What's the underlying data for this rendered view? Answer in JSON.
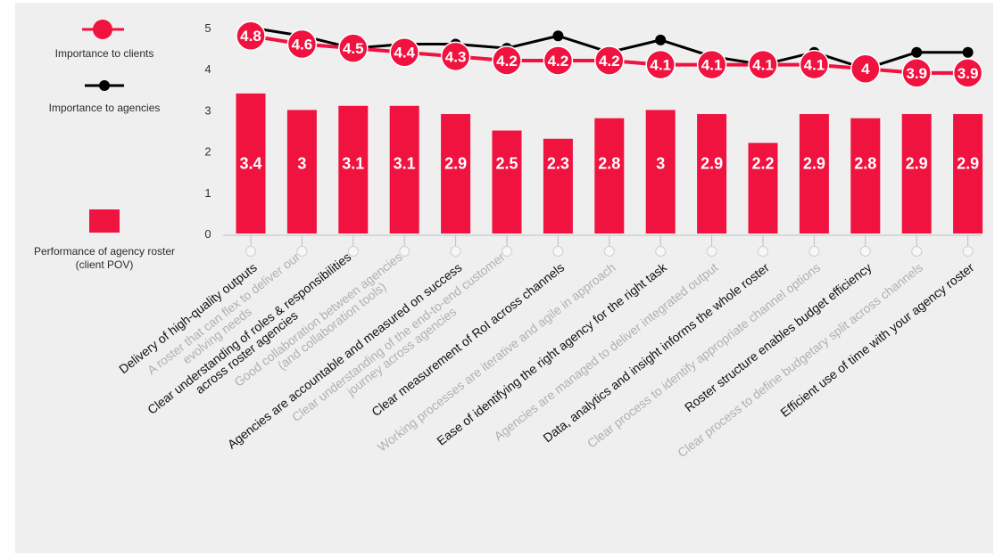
{
  "colors": {
    "background": "#efefef",
    "bar": "#f0123f",
    "clients": "#f0123f",
    "agencies": "#000000",
    "axis": "#bfbfbf",
    "label_dark": "#111111",
    "label_light": "#b0b0b0"
  },
  "legend": {
    "clients_label": "Importance to clients",
    "agencies_label": "Importance to agencies",
    "performance_label_line1": "Performance of agency roster",
    "performance_label_line2": "(client POV)"
  },
  "chart_data": {
    "type": "bar",
    "ylim": [
      0,
      5
    ],
    "yticks": [
      "0",
      "1",
      "2",
      "3",
      "4",
      "5"
    ],
    "grid": false,
    "legend_position": "left",
    "categories": [
      [
        "Delivery of high-quality outputs"
      ],
      [
        "A roster that can flex to deliver our",
        "evolving needs"
      ],
      [
        "Clear understanding of roles & responsibilities",
        "across roster agencies"
      ],
      [
        "Good collaboration between agencies",
        "(and collaboration tools)"
      ],
      [
        "Agencies are accountable and measured on success"
      ],
      [
        "Clear understanding of the end-to-end customer",
        "journey across agencies"
      ],
      [
        "Clear measurement of RoI across channels"
      ],
      [
        "Working processes are iterative and agile in approach"
      ],
      [
        "Ease of identifying the right agency for the right task"
      ],
      [
        "Agencies are managed to deliver integrated output"
      ],
      [
        "Data, analytics and insight informs the whole roster"
      ],
      [
        "Clear process to identify appropriate channel options"
      ],
      [
        "Roster structure enables budget efficiency"
      ],
      [
        "Clear process to define budgetary split across channels"
      ],
      [
        "Efficient use of time with your agency roster"
      ]
    ],
    "category_tone": [
      "dark",
      "light",
      "dark",
      "light",
      "dark",
      "light",
      "dark",
      "light",
      "dark",
      "light",
      "dark",
      "light",
      "dark",
      "light",
      "dark"
    ],
    "series": [
      {
        "name": "Performance of agency roster (client POV)",
        "kind": "bar",
        "values": [
          3.4,
          3,
          3.1,
          3.1,
          2.9,
          2.5,
          2.3,
          2.8,
          3,
          2.9,
          2.2,
          2.9,
          2.8,
          2.9,
          2.9
        ],
        "labels": [
          "3.4",
          "3",
          "3.1",
          "3.1",
          "2.9",
          "2.5",
          "2.3",
          "2.8",
          "3",
          "2.9",
          "2.2",
          "2.9",
          "2.8",
          "2.9",
          "2.9"
        ]
      },
      {
        "name": "Importance to clients",
        "kind": "line",
        "values": [
          4.8,
          4.6,
          4.5,
          4.4,
          4.3,
          4.2,
          4.2,
          4.2,
          4.1,
          4.1,
          4.1,
          4.1,
          4,
          3.9,
          3.9
        ],
        "labels": [
          "4.8",
          "4.6",
          "4.5",
          "4.4",
          "4.3",
          "4.2",
          "4.2",
          "4.2",
          "4.1",
          "4.1",
          "4.1",
          "4.1",
          "4",
          "3.9",
          "3.9"
        ]
      },
      {
        "name": "Importance to agencies",
        "kind": "line",
        "values": [
          5.0,
          4.8,
          4.5,
          4.6,
          4.6,
          4.5,
          4.8,
          4.4,
          4.7,
          4.3,
          4.1,
          4.4,
          4.0,
          4.4,
          4.4
        ]
      }
    ]
  }
}
